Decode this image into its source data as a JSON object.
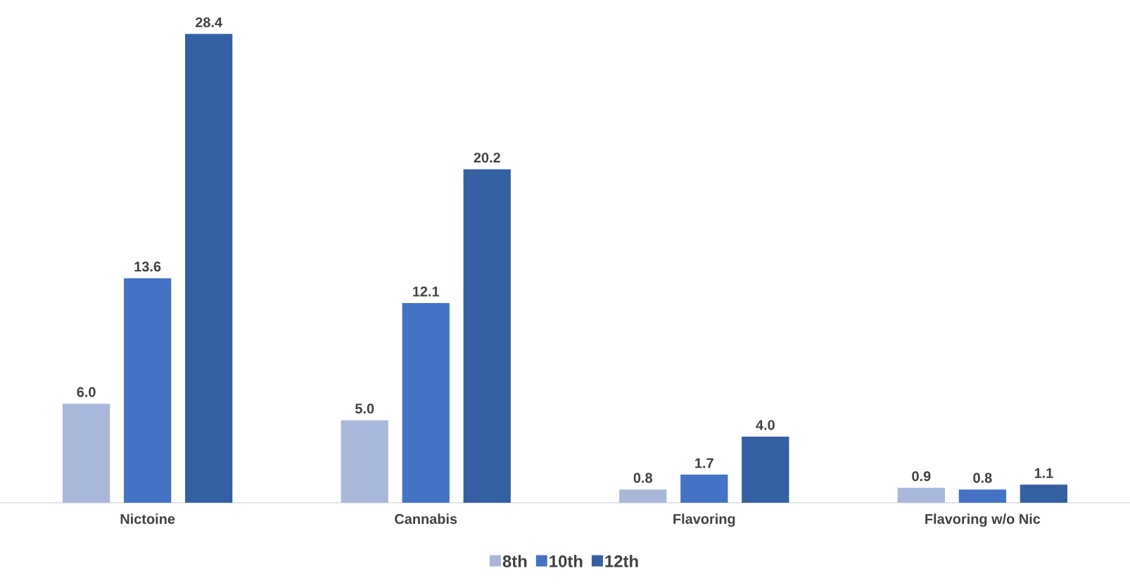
{
  "chart_data": {
    "type": "bar",
    "categories": [
      "Nictoine",
      "Cannabis",
      "Flavoring",
      "Flavoring w/o Nic"
    ],
    "series": [
      {
        "name": "8th",
        "color": "#a9b7db",
        "values": [
          6.0,
          5.0,
          0.8,
          0.9
        ],
        "value_labels": [
          "6.0",
          "5.0",
          "0.8",
          "0.9"
        ]
      },
      {
        "name": "10th",
        "color": "#4472c4",
        "values": [
          13.6,
          12.1,
          1.7,
          0.8
        ],
        "value_labels": [
          "13.6",
          "12.1",
          "1.7",
          "0.8"
        ]
      },
      {
        "name": "12th",
        "color": "#355fa3",
        "values": [
          28.4,
          20.2,
          4.0,
          1.1
        ],
        "value_labels": [
          "28.4",
          "20.2",
          "4.0",
          "1.1"
        ]
      }
    ],
    "legend": "bottom"
  }
}
